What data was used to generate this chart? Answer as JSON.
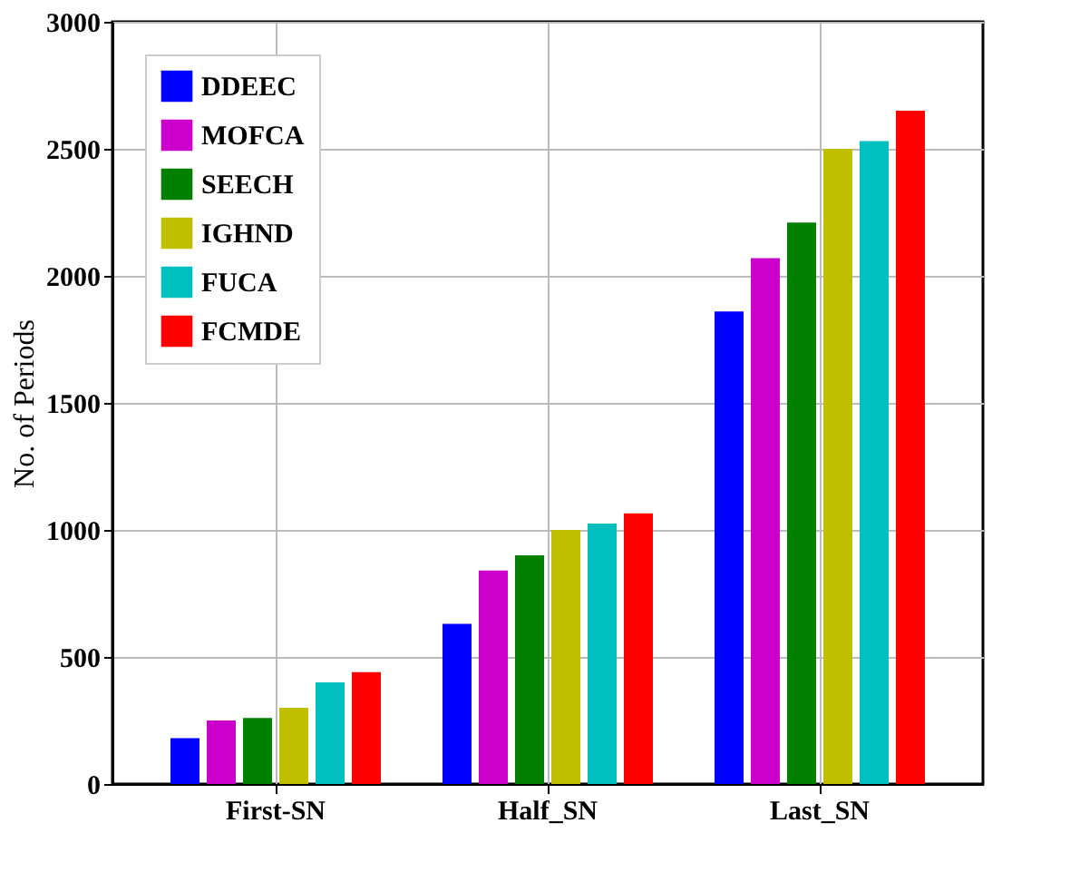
{
  "chart_data": {
    "type": "bar",
    "ylabel": "No. of Periods",
    "categories": [
      "First-SN",
      "Half_SN",
      "Last_SN"
    ],
    "series": [
      {
        "name": "DDEEC",
        "color": "#0000ff",
        "values": [
          180,
          630,
          1860
        ]
      },
      {
        "name": "MOFCA",
        "color": "#cc00cc",
        "values": [
          250,
          840,
          2070
        ]
      },
      {
        "name": "SEECH",
        "color": "#008000",
        "values": [
          260,
          900,
          2210
        ]
      },
      {
        "name": "IGHND",
        "color": "#bfbf00",
        "values": [
          300,
          1000,
          2500
        ]
      },
      {
        "name": "FUCA",
        "color": "#00bfbf",
        "values": [
          400,
          1025,
          2530
        ]
      },
      {
        "name": "FCMDE",
        "color": "#ff0000",
        "values": [
          440,
          1065,
          2650
        ]
      }
    ],
    "ylim": [
      0,
      3000
    ],
    "yticks": [
      0,
      500,
      1000,
      1500,
      2000,
      2500,
      3000
    ],
    "grid": true,
    "legend": "top left"
  }
}
